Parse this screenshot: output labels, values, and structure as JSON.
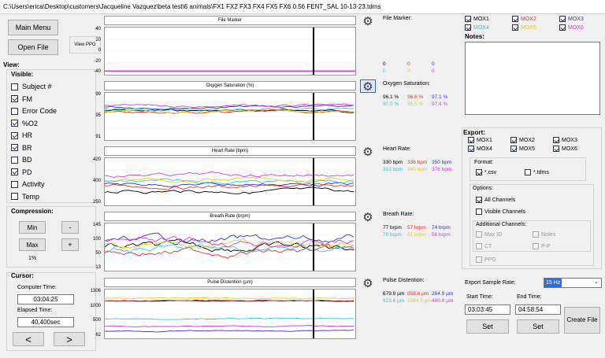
{
  "window": {
    "path": "C:\\Users\\erica\\Desktop\\customers\\Jacqueline Vazquez\\beta test\\6 animals\\FX1 FX2 FX3 FX4 FX5 FX6 0.56 FENT_SAL 10-13-23.tdms"
  },
  "left": {
    "main_menu": "Main Menu",
    "open_file": "Open File",
    "view_ppg": "View PPG",
    "view_header": "View:",
    "visible_header": "Visible:",
    "visible_items": [
      {
        "label": "Subject #",
        "checked": false
      },
      {
        "label": "FM",
        "checked": true
      },
      {
        "label": "Error Code",
        "checked": false
      },
      {
        "label": "%O2",
        "checked": true
      },
      {
        "label": "HR",
        "checked": true
      },
      {
        "label": "BR",
        "checked": true
      },
      {
        "label": "BD",
        "checked": false
      },
      {
        "label": "PD",
        "checked": true
      },
      {
        "label": "Activity",
        "checked": false
      },
      {
        "label": "Temp",
        "checked": false
      }
    ],
    "compression_header": "Compression:",
    "min": "Min",
    "max": "Max",
    "minus": "-",
    "plus": "+",
    "compression_value": "1%",
    "cursor_header": "Cursor:",
    "computer_time_label": "Computer Time:",
    "computer_time": "03:04:25",
    "elapsed_time_label": "Elapsed Time:",
    "elapsed_time": "40,400sec",
    "prev": "<",
    "next": ">"
  },
  "charts": [
    {
      "title": "File Marker",
      "yticks": [
        "40",
        "20",
        "0",
        "-20",
        "-40"
      ],
      "label": "File Marker:",
      "values": [
        [
          "0",
          "0",
          "0"
        ],
        [
          "0",
          "0",
          "0"
        ]
      ]
    },
    {
      "title": "Oxygen Saturation (%)",
      "yticks": [
        "99",
        "95",
        "91"
      ],
      "label": "Oxygen Saturation:",
      "values": [
        [
          "96.1 %",
          "96.6 %",
          "97.1 %"
        ],
        [
          "97.0 %",
          "95.5 %",
          "97.4 %"
        ]
      ]
    },
    {
      "title": "Heart Rate (bpm)",
      "yticks": [
        "420",
        "400",
        "250"
      ],
      "label": "Heart Rate:",
      "values": [
        [
          "330 bpm",
          "336 bpm",
          "350 bpm"
        ],
        [
          "313 bpm",
          "340 bpm",
          "376 bpm"
        ]
      ]
    },
    {
      "title": "Breath Rate (brpm)",
      "yticks": [
        "145",
        "100",
        "50",
        "13"
      ],
      "label": "Breath Rate:",
      "values": [
        [
          "77 brpm",
          "57 brpm",
          "74 brpm"
        ],
        [
          "70 brpm",
          "61 brpm",
          "56 brpm"
        ]
      ]
    },
    {
      "title": "Pulse Distention (µm)",
      "yticks": [
        "1306",
        "1000",
        "500",
        "62"
      ],
      "label": "Pulse Distention:",
      "values": [
        [
          "679.9 µm",
          "858.6 µm",
          "264.9 µm"
        ],
        [
          "623.6 µm",
          "1084.5 µm",
          "400.9 µm"
        ]
      ]
    }
  ],
  "right": {
    "mox": [
      {
        "label": "MOX1",
        "checked": true
      },
      {
        "label": "MOX2",
        "checked": true
      },
      {
        "label": "MOX3",
        "checked": true
      },
      {
        "label": "MOX4",
        "checked": true
      },
      {
        "label": "MOX5",
        "checked": true
      },
      {
        "label": "MOX6",
        "checked": true
      }
    ],
    "notes_label": "Notes:",
    "export_label": "Export:",
    "export_mox": [
      "MOX1",
      "MOX2",
      "MOX3",
      "MOX4",
      "MOX5",
      "MOX6"
    ],
    "format_label": "Format:",
    "csv": "*.csv",
    "tdms": "*.tdms",
    "options_label": "Options:",
    "all_channels": "All Channels",
    "visible_channels": "Visible Channels",
    "additional_label": "Additional Channels:",
    "max_id": "Max ID",
    "notes_chk": "Notes",
    "ct": "CT",
    "pp": "P-P",
    "ppg": "PPG",
    "sample_rate_label": "Export Sample Rate:",
    "sample_rate": "15 Hz",
    "start_time_label": "Start Time:",
    "start_time": "03:03:45",
    "end_time_label": "End Time:",
    "end_time": "04:58:54",
    "set": "Set",
    "create_file": "Create File"
  },
  "colors": {
    "c1": "#000000",
    "c2": "#e8302c",
    "c3": "#3333dd",
    "c4": "#38c7d8",
    "c5": "#e0d020",
    "c6": "#d040e0",
    "cursor": "#000000"
  }
}
